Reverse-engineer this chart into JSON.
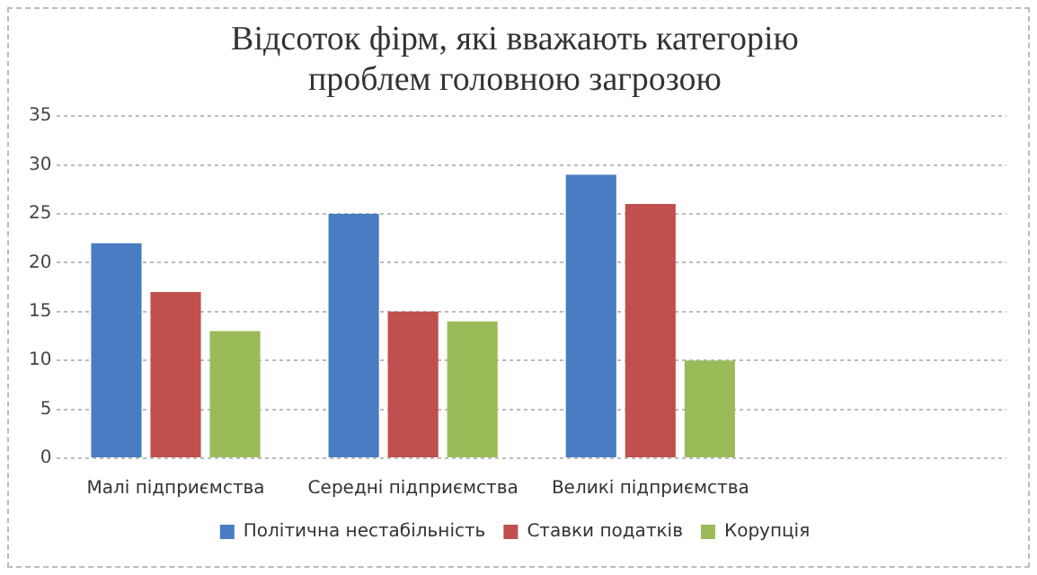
{
  "chart_data": {
    "type": "bar",
    "title": "Відсоток фірм, які вважають категорію проблем головною загрозою",
    "categories": [
      "Малі підприємства",
      "Середні підприємства",
      "Великі підприємства",
      null
    ],
    "series": [
      {
        "name": "Політична нестабільність",
        "color": "#4a7cc4",
        "values": [
          22,
          25,
          29,
          null
        ]
      },
      {
        "name": "Ставки податків",
        "color": "#c0504d",
        "values": [
          17,
          15,
          26,
          null
        ]
      },
      {
        "name": "Корупція",
        "color": "#9bbb59",
        "values": [
          13,
          14,
          10,
          null
        ]
      }
    ],
    "ylim": [
      0,
      35
    ],
    "yticks": [
      0,
      5,
      10,
      15,
      20,
      25,
      30,
      35
    ],
    "grid": "y",
    "legend": "bottom"
  }
}
